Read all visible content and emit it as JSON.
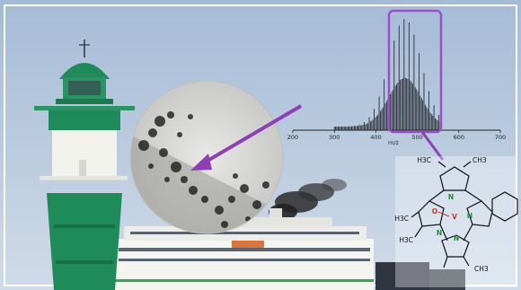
{
  "colors": {
    "sky_top": "#a9bfd9",
    "sky_bottom": "#c9d7e6",
    "lighthouse_green": "#1f8a5a",
    "lighthouse_white": "#f2f2ec",
    "arrow_purple": "#8e3fb5",
    "highlight_box": "#9b4dca",
    "ship_hull": "#f4f4f0",
    "smoke": "#1d1d1d",
    "atom_N": "#1a8a3a",
    "atom_V": "#c0392b"
  },
  "icons": {
    "lighthouse": "lighthouse-icon",
    "ship": "ship-icon",
    "smoke": "smoke-plume-icon",
    "micrograph": "tem-micrograph-icon",
    "arrow": "arrow-icon"
  },
  "mass_spectrum": {
    "xlabel": "m/z",
    "ticks": [
      "200",
      "300",
      "400",
      "500",
      "600",
      "700"
    ],
    "highlight_range_mz": [
      460,
      555
    ]
  },
  "molecule": {
    "methyl_labels": [
      "H3C",
      "CH3",
      "H3C",
      "H3C",
      "CH3"
    ],
    "atoms": {
      "oxygen": "O",
      "vanadium": "V",
      "nitrogen": [
        "N",
        "N",
        "N",
        "N"
      ]
    }
  }
}
